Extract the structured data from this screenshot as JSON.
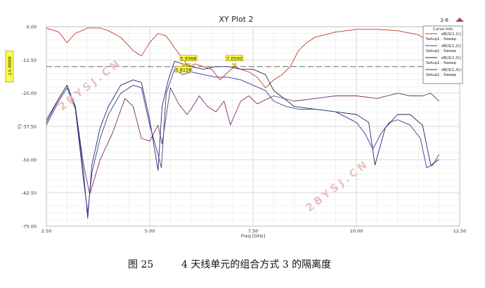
{
  "chart_data": {
    "type": "line",
    "title": "XY Plot 2",
    "corner_label": "2-6",
    "xlabel": "Freq [GHz]",
    "ylabel": "Y1",
    "xlim": [
      2.5,
      12.5
    ],
    "ylim": [
      -75.0,
      0.0
    ],
    "x_ticks": [
      2.5,
      5.0,
      7.5,
      10.0,
      12.5
    ],
    "x_tick_labels": [
      "2.50",
      "5.00",
      "7.50",
      "10.00",
      "12.50"
    ],
    "y_ticks": [
      0,
      -12.5,
      -25,
      -37.5,
      -50,
      -62.5,
      -75
    ],
    "y_tick_labels": [
      "0.00",
      "-12.50",
      "-25.00",
      "-37.50",
      "-50.00",
      "-62.50",
      "-75.00"
    ],
    "grid": true,
    "legend_title": "Curve Info",
    "legend_position": "top-right",
    "reference_line": {
      "y": -15.0,
      "label": "-15.0000"
    },
    "markers": [
      {
        "label": "5.9368",
        "x": 5.9368
      },
      {
        "label": "5.8158",
        "x": 5.8158
      },
      {
        "label": "7.0500",
        "x": 7.05
      }
    ],
    "series": [
      {
        "name": "dB(S(1,1))",
        "setup": "Setup1 : Sweep",
        "color": "#c0392b",
        "x": [
          2.5,
          2.8,
          3.0,
          3.2,
          3.5,
          3.8,
          4.0,
          4.3,
          4.6,
          4.8,
          5.0,
          5.2,
          5.4,
          5.6,
          5.8,
          5.94,
          6.1,
          6.3,
          6.5,
          6.7,
          6.9,
          7.05,
          7.2,
          7.4,
          7.6,
          7.8,
          8.0,
          8.2,
          8.4,
          8.6,
          8.8,
          9.0,
          9.5,
          10.0,
          10.5,
          11.0,
          11.5,
          11.8,
          12.0
        ],
        "y": [
          -0.5,
          -2,
          -6,
          -2.5,
          -0.5,
          -0.5,
          -1.5,
          -4,
          -9,
          -11,
          -6,
          -2.5,
          -3.5,
          -8,
          -12,
          -15,
          -14,
          -15,
          -16,
          -20,
          -17,
          -15,
          -16,
          -17,
          -19,
          -23,
          -20,
          -18,
          -15,
          -9,
          -6,
          -4,
          -2,
          -1,
          -1,
          -1.5,
          -3,
          -6,
          -12
        ]
      },
      {
        "name": "dB(S(1,2))",
        "setup": "Setup1 : Sweep",
        "color": "#7b2d6e",
        "x": [
          2.5,
          2.8,
          3.0,
          3.2,
          3.4,
          3.55,
          3.8,
          4.1,
          4.4,
          4.6,
          4.8,
          5.0,
          5.2,
          5.3,
          5.5,
          5.7,
          5.9,
          6.0,
          6.2,
          6.4,
          6.6,
          6.8,
          6.95,
          7.2,
          7.4,
          7.6,
          8.0,
          8.5,
          9.0,
          9.5,
          10.0,
          10.5,
          11.0,
          11.3,
          11.6,
          11.8,
          12.0
        ],
        "y": [
          -35,
          -27,
          -22,
          -30,
          -52,
          -63,
          -50,
          -40,
          -27,
          -30,
          -42,
          -43,
          -37,
          -44,
          -23,
          -29,
          -33,
          -31,
          -26,
          -30,
          -32,
          -28,
          -37,
          -28,
          -26,
          -29,
          -26,
          -28,
          -27,
          -26,
          -26,
          -27,
          -25,
          -26,
          -26,
          -25,
          -28
        ]
      },
      {
        "name": "dB(S(1,3))",
        "setup": "Setup1 : Sweep",
        "color": "#1f2a6b",
        "x": [
          2.5,
          2.8,
          3.0,
          3.2,
          3.4,
          3.5,
          3.6,
          3.8,
          4.0,
          4.3,
          4.6,
          4.8,
          5.0,
          5.2,
          5.3,
          5.45,
          5.6,
          5.8,
          6.0,
          6.3,
          6.6,
          6.9,
          7.2,
          7.5,
          7.8,
          8.0,
          8.5,
          9.0,
          9.5,
          10.0,
          10.3,
          10.45,
          10.7,
          11.0,
          11.3,
          11.6,
          11.8,
          12.0
        ],
        "y": [
          -36,
          -27,
          -22,
          -30,
          -55,
          -72,
          -52,
          -38,
          -30,
          -22,
          -20,
          -21,
          -35,
          -54,
          -30,
          -20,
          -13,
          -14,
          -15,
          -16,
          -15,
          -15,
          -16,
          -16,
          -18,
          -24,
          -30,
          -31,
          -32,
          -33,
          -36,
          -52,
          -38,
          -33,
          -33,
          -37,
          -52,
          -50
        ]
      },
      {
        "name": "dB(S(1,4))",
        "setup": "Setup1 : Sweep",
        "color": "#3a3a8c",
        "x": [
          2.5,
          2.8,
          3.0,
          3.2,
          3.4,
          3.5,
          3.6,
          3.8,
          4.0,
          4.3,
          4.6,
          4.8,
          5.0,
          5.2,
          5.28,
          5.4,
          5.6,
          5.8,
          6.0,
          6.3,
          6.6,
          6.9,
          7.2,
          7.5,
          7.8,
          8.0,
          8.3,
          8.6,
          9.0,
          9.5,
          10.0,
          10.2,
          10.4,
          10.6,
          10.8,
          11.0,
          11.3,
          11.55,
          11.7,
          11.85,
          12.0
        ],
        "y": [
          -37,
          -28,
          -23,
          -31,
          -58,
          -70,
          -55,
          -42,
          -33,
          -25,
          -22,
          -23,
          -37,
          -48,
          -53,
          -25,
          -16,
          -18,
          -17,
          -18,
          -19,
          -19,
          -20,
          -22,
          -24,
          -28,
          -30,
          -31,
          -31,
          -32,
          -36,
          -40,
          -46,
          -40,
          -36,
          -35,
          -37,
          -42,
          -53,
          -52,
          -48
        ]
      }
    ],
    "watermarks": [
      "2BYSJ.CN",
      "2BYSJ.CN"
    ]
  },
  "caption": {
    "figure_label": "图 25",
    "text": "4 天线单元的组合方式 3 的隔离度"
  }
}
